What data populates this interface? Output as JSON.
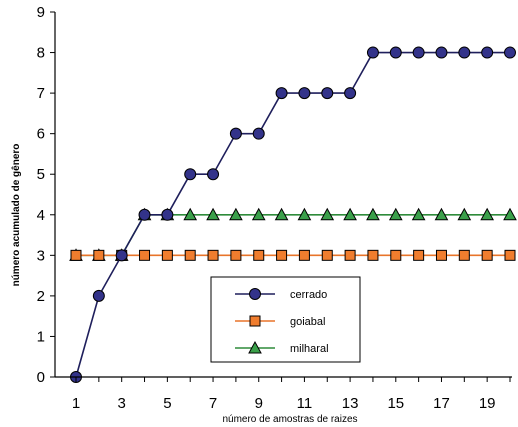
{
  "chart_data": {
    "type": "line",
    "xlabel": "número de amostras de raizes",
    "ylabel": "número acumulado de gênero",
    "xlim": [
      1,
      20
    ],
    "ylim": [
      0,
      9
    ],
    "x_ticks": [
      1,
      3,
      5,
      7,
      9,
      11,
      13,
      15,
      17,
      19
    ],
    "y_ticks": [
      0,
      1,
      2,
      3,
      4,
      5,
      6,
      7,
      8,
      9
    ],
    "grid": false,
    "legend_position": "bottom-center",
    "x": [
      1,
      2,
      3,
      4,
      5,
      6,
      7,
      8,
      9,
      10,
      11,
      12,
      13,
      14,
      15,
      16,
      17,
      18,
      19,
      20
    ],
    "series": [
      {
        "name": "cerrado",
        "marker": "circle",
        "line_color": "#1f1f5c",
        "marker_color": "#33338a",
        "values": [
          0,
          2,
          3,
          4,
          4,
          5,
          5,
          6,
          6,
          7,
          7,
          7,
          7,
          8,
          8,
          8,
          8,
          8,
          8,
          8
        ]
      },
      {
        "name": "goiabal",
        "marker": "square",
        "line_color": "#e8742a",
        "marker_color": "#f07d2e",
        "values": [
          3,
          3,
          3,
          3,
          3,
          3,
          3,
          3,
          3,
          3,
          3,
          3,
          3,
          3,
          3,
          3,
          3,
          3,
          3,
          3
        ]
      },
      {
        "name": "milharal",
        "marker": "triangle",
        "line_color": "#2e8b3a",
        "marker_color": "#3aa04a",
        "values": [
          3,
          3,
          3,
          4,
          4,
          4,
          4,
          4,
          4,
          4,
          4,
          4,
          4,
          4,
          4,
          4,
          4,
          4,
          4,
          4
        ]
      }
    ]
  }
}
